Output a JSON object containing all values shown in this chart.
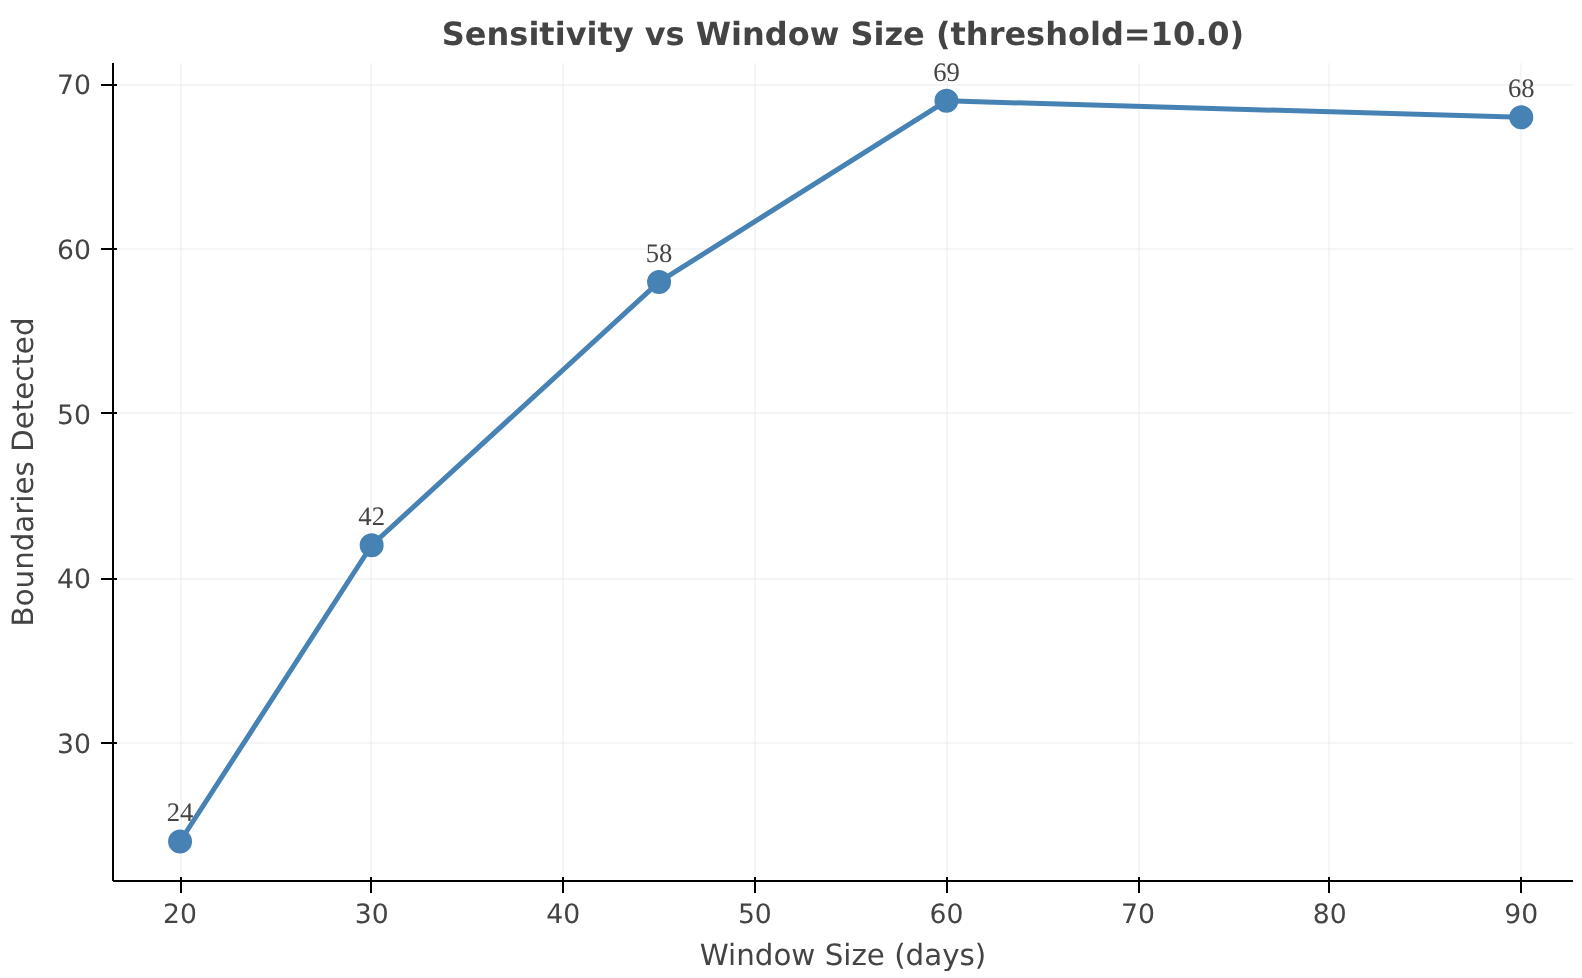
{
  "chart_data": {
    "type": "line",
    "title": "Sensitivity vs Window Size (threshold=10.0)",
    "xlabel": "Window Size (days)",
    "ylabel": "Boundaries Detected",
    "x": [
      20,
      30,
      45,
      60,
      90
    ],
    "series": [
      {
        "color": "#4682b4",
        "values": [
          24,
          42,
          58,
          69,
          68
        ]
      }
    ],
    "xlim": [
      16.5,
      92.7
    ],
    "ylim": [
      21.6,
      71.3
    ],
    "xticks": [
      20,
      30,
      40,
      50,
      60,
      70,
      80,
      90
    ],
    "yticks": [
      30,
      40,
      50,
      60,
      70
    ],
    "grid": true,
    "marker": "circle",
    "line_style": "solid",
    "data_labels": true
  }
}
